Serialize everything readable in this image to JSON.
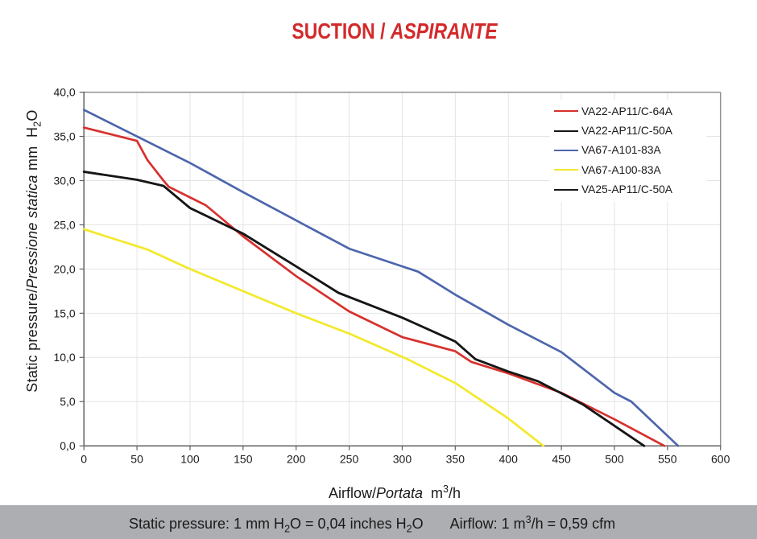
{
  "page": {
    "background": "#ffffff",
    "title_color": "#d3292b",
    "footer_background": "#acaeb2"
  },
  "title": {
    "regular_part": "SUCTION / ",
    "italic_part": "ASPIRANTE"
  },
  "axis_titles": {
    "y": {
      "regular_part": "Static pressure/",
      "italic_part": "Pressione statica",
      "unit_pre": " mm  H",
      "unit_sub": "2",
      "unit_post": "O"
    },
    "x": {
      "regular_part": "Airflow/",
      "italic_part": "Portata",
      "unit_pre": "  m",
      "unit_sup": "3",
      "unit_post": "/h"
    }
  },
  "footer": {
    "left": {
      "text_a": "Static pressure: 1 mm H",
      "sub_a": "2",
      "text_b": "O = 0,04 inches H",
      "sub_b": "2",
      "text_c": "O"
    },
    "right": {
      "text_a": "Airflow: 1 m",
      "sup_a": "3",
      "text_b": "/h = 0,59 cfm"
    }
  },
  "legend": {
    "items": [
      {
        "label": "VA22-AP11/C-64A",
        "color": "#d7312d"
      },
      {
        "label": "VA22-AP11/C-50A",
        "color": "#161616"
      },
      {
        "label": "VA67-A101-83A",
        "color": "#4d66ac"
      },
      {
        "label": "VA67-A100-83A",
        "color": "#f2e92b"
      },
      {
        "label": "VA25-AP11/C-50A",
        "color": "#161616"
      }
    ]
  },
  "chart_data": {
    "type": "line",
    "title": "SUCTION / ASPIRANTE",
    "xlabel": "Airflow/Portata m³/h",
    "ylabel": "Static pressure/Pressione statica mm H₂O",
    "xlim": [
      0,
      600
    ],
    "ylim": [
      0,
      40
    ],
    "grid": true,
    "legend_position": "top-right",
    "x_ticks": [
      {
        "value": 0,
        "label": "0"
      },
      {
        "value": 50,
        "label": "50"
      },
      {
        "value": 100,
        "label": "100"
      },
      {
        "value": 150,
        "label": "150"
      },
      {
        "value": 200,
        "label": "200"
      },
      {
        "value": 250,
        "label": "250"
      },
      {
        "value": 300,
        "label": "300"
      },
      {
        "value": 350,
        "label": "350"
      },
      {
        "value": 400,
        "label": "400"
      },
      {
        "value": 450,
        "label": "450"
      },
      {
        "value": 500,
        "label": "500"
      },
      {
        "value": 550,
        "label": "550"
      },
      {
        "value": 600,
        "label": "600"
      }
    ],
    "y_ticks": [
      {
        "value": 0,
        "label": "0,0"
      },
      {
        "value": 5,
        "label": "5,0"
      },
      {
        "value": 10,
        "label": "10,0"
      },
      {
        "value": 15,
        "label": "15,0"
      },
      {
        "value": 20,
        "label": "20,0"
      },
      {
        "value": 25,
        "label": "25,0"
      },
      {
        "value": 30,
        "label": "30,0"
      },
      {
        "value": 35,
        "label": "35,0"
      },
      {
        "value": 40,
        "label": "40,0"
      }
    ],
    "series": [
      {
        "name": "VA22-AP11/C-64A",
        "color": "#d7312d",
        "z": 3,
        "points": [
          [
            0,
            36
          ],
          [
            50,
            34.5
          ],
          [
            60,
            32.3
          ],
          [
            75,
            30.0
          ],
          [
            80,
            29.3
          ],
          [
            100,
            28.1
          ],
          [
            115,
            27.2
          ],
          [
            150,
            23.7
          ],
          [
            200,
            19.2
          ],
          [
            250,
            15.2
          ],
          [
            300,
            12.3
          ],
          [
            350,
            10.7
          ],
          [
            365,
            9.5
          ],
          [
            400,
            8.2
          ],
          [
            450,
            6.0
          ],
          [
            500,
            3.0
          ],
          [
            547,
            0
          ]
        ]
      },
      {
        "name": "VA22-AP11/C-50A",
        "color": "#161616",
        "z": 4,
        "points": [
          [
            0,
            31
          ],
          [
            50,
            30.1
          ],
          [
            75,
            29.4
          ],
          [
            100,
            26.9
          ],
          [
            150,
            24.0
          ],
          [
            200,
            20.3
          ],
          [
            240,
            17.3
          ],
          [
            300,
            14.5
          ],
          [
            350,
            11.8
          ],
          [
            369,
            9.8
          ],
          [
            400,
            8.4
          ],
          [
            428,
            7.3
          ],
          [
            470,
            4.7
          ],
          [
            528,
            0
          ]
        ]
      },
      {
        "name": "VA67-A101-83A",
        "color": "#4d66ac",
        "z": 1,
        "points": [
          [
            0,
            38
          ],
          [
            50,
            35
          ],
          [
            100,
            32.0
          ],
          [
            150,
            28.7
          ],
          [
            200,
            25.5
          ],
          [
            250,
            22.3
          ],
          [
            300,
            20.3
          ],
          [
            315,
            19.7
          ],
          [
            350,
            17.1
          ],
          [
            400,
            13.7
          ],
          [
            450,
            10.6
          ],
          [
            500,
            6.0
          ],
          [
            516,
            5.0
          ],
          [
            560,
            0
          ]
        ]
      },
      {
        "name": "VA67-A100-83A",
        "color": "#f2e92b",
        "z": 2,
        "points": [
          [
            0,
            24.5
          ],
          [
            60,
            22.2
          ],
          [
            100,
            20.0
          ],
          [
            150,
            17.5
          ],
          [
            200,
            15.0
          ],
          [
            250,
            12.7
          ],
          [
            305,
            9.8
          ],
          [
            350,
            7.1
          ],
          [
            400,
            3.1
          ],
          [
            433,
            0
          ]
        ]
      },
      {
        "name": "VA25-AP11/C-50A",
        "color": "#161616",
        "z": 5,
        "points": [
          [
            0,
            31
          ],
          [
            50,
            30.1
          ],
          [
            75,
            29.4
          ],
          [
            100,
            26.9
          ],
          [
            150,
            24.0
          ],
          [
            200,
            20.3
          ],
          [
            240,
            17.3
          ],
          [
            300,
            14.5
          ],
          [
            350,
            11.8
          ],
          [
            369,
            9.8
          ],
          [
            400,
            8.4
          ],
          [
            428,
            7.3
          ],
          [
            470,
            4.7
          ],
          [
            528,
            0
          ]
        ]
      }
    ]
  }
}
